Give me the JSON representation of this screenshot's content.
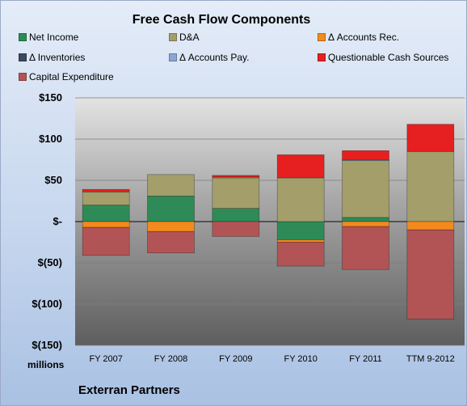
{
  "chart_data": {
    "type": "bar",
    "stacked": true,
    "title": "Free Cash Flow Components",
    "categories": [
      "FY 2007",
      "FY 2008",
      "FY 2009",
      "FY 2010",
      "FY 2011",
      "TTM 9-2012"
    ],
    "series": [
      {
        "name": "Net Income",
        "color": "#2e8b57",
        "values": [
          20,
          31,
          16,
          -22,
          5,
          0
        ]
      },
      {
        "name": "D&A",
        "color": "#a39e6a",
        "values": [
          16,
          26,
          37,
          53,
          69,
          85
        ]
      },
      {
        "name": "Δ Accounts Rec.",
        "color": "#f28a1e",
        "values": [
          -7,
          -12,
          0,
          -3,
          -6,
          -10
        ]
      },
      {
        "name": "Δ Inventories",
        "color": "#3b4a60",
        "values": [
          0,
          0,
          0,
          0,
          0,
          0
        ]
      },
      {
        "name": "Δ Accounts Pay.",
        "color": "#88a6cf",
        "values": [
          0,
          0,
          1,
          0,
          1,
          0
        ]
      },
      {
        "name": "Questionable Cash Sources",
        "color": "#e62020",
        "values": [
          3,
          0,
          2,
          28,
          11,
          33
        ]
      },
      {
        "name": "Capital Expenditure",
        "color": "#b25455",
        "values": [
          -34,
          -26,
          -18,
          -29,
          -52,
          -108
        ]
      }
    ],
    "ylim": [
      -150,
      150
    ],
    "yticks": [
      150,
      100,
      50,
      0,
      -50,
      -100,
      -150
    ],
    "ytick_labels": [
      "$150",
      "$100",
      "$50",
      "$-",
      "$(50)",
      "$(100)",
      "$(150)"
    ],
    "ylabel": "millions",
    "grid": true,
    "legend_position": "top"
  },
  "footer": {
    "company": "Exterran Partners"
  }
}
